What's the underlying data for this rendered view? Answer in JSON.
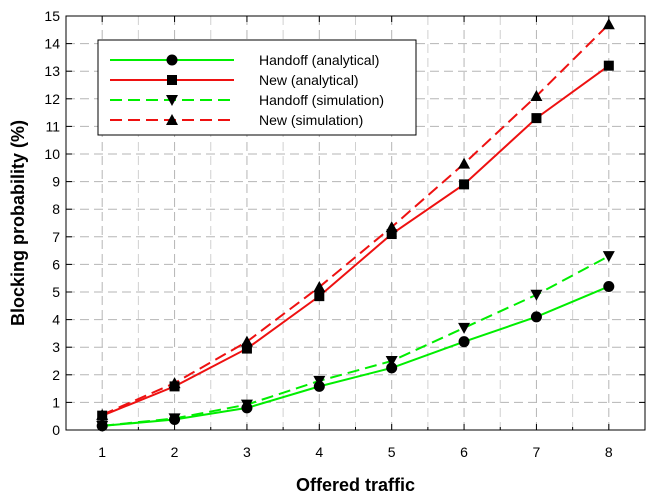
{
  "chart_data": {
    "type": "line",
    "title": "",
    "xlabel": "Offered traffic",
    "ylabel": "Blocking probability (%)",
    "x": [
      1,
      2,
      3,
      4,
      5,
      6,
      7,
      8
    ],
    "xlim": [
      0.5,
      8.5
    ],
    "ylim": [
      0,
      15
    ],
    "xticks": [
      1,
      2,
      3,
      4,
      5,
      6,
      7,
      8
    ],
    "yticks": [
      0,
      1,
      2,
      3,
      4,
      5,
      6,
      7,
      8,
      9,
      10,
      11,
      12,
      13,
      14,
      15
    ],
    "grid": true,
    "legend_position": "top-left",
    "series": [
      {
        "name": "Handoff (analytical)",
        "color": "#00ee00",
        "dash": "solid",
        "marker": "circle",
        "values": [
          0.15,
          0.38,
          0.8,
          1.58,
          2.25,
          3.2,
          4.1,
          5.2
        ]
      },
      {
        "name": "New (analytical)",
        "color": "#ee1111",
        "dash": "solid",
        "marker": "square",
        "values": [
          0.52,
          1.58,
          2.95,
          4.85,
          7.1,
          8.9,
          11.3,
          13.2
        ]
      },
      {
        "name": "Handoff (simulation)",
        "color": "#00ee00",
        "dash": "dashed",
        "marker": "triangle-down",
        "values": [
          0.15,
          0.42,
          0.92,
          1.78,
          2.5,
          3.7,
          4.9,
          6.3
        ]
      },
      {
        "name": "New (simulation)",
        "color": "#ee1111",
        "dash": "dashed",
        "marker": "triangle-up",
        "values": [
          0.55,
          1.7,
          3.2,
          5.18,
          7.35,
          9.65,
          12.1,
          14.7
        ]
      }
    ]
  }
}
